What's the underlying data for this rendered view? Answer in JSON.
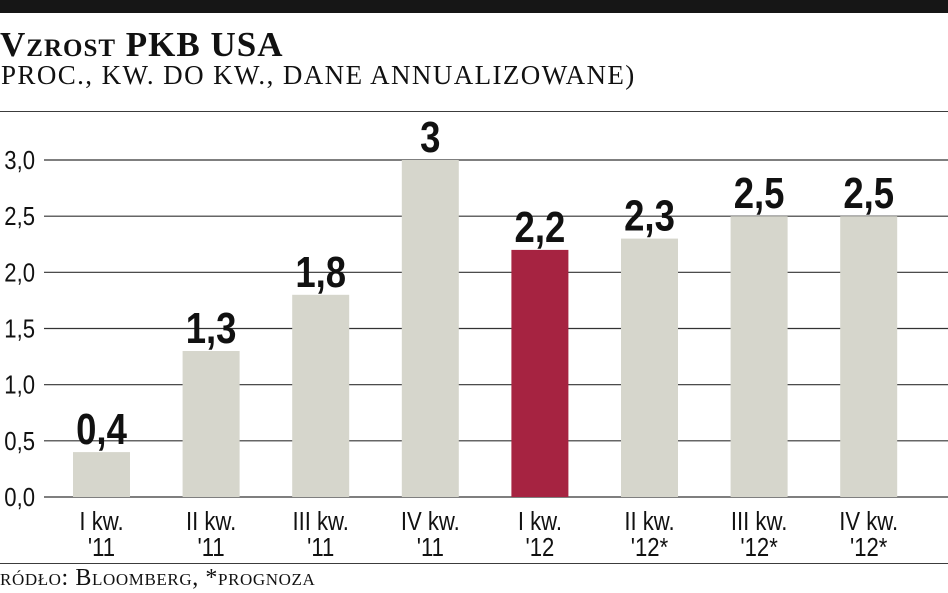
{
  "colors": {
    "top_bar": "#161616",
    "text": "#111111",
    "grid": "#333333",
    "rule": "#3c3c3c",
    "bar": "#d6d6cc",
    "highlight": "#a62341"
  },
  "chart_data": {
    "type": "bar",
    "title": "Vzrost PKB USA",
    "subtitle": "PROC., KW. DO KW., DANE ANNUALIZOWANE)",
    "source": "ródło: Bloomberg, *prognoza",
    "categories": [
      [
        "I kw.",
        "'11"
      ],
      [
        "II kw.",
        "'11"
      ],
      [
        "III kw.",
        "'11"
      ],
      [
        "IV kw.",
        "'11"
      ],
      [
        "I kw.",
        "'12"
      ],
      [
        "II kw.",
        "'12*"
      ],
      [
        "III kw.",
        "'12*"
      ],
      [
        "IV kw.",
        "'12*"
      ]
    ],
    "values": [
      0.4,
      1.3,
      1.8,
      3,
      2.2,
      2.3,
      2.5,
      2.5
    ],
    "value_labels": [
      "0,4",
      "1,3",
      "1,8",
      "3",
      "2,2",
      "2,3",
      "2,5",
      "2,5"
    ],
    "highlight_index": 4,
    "ylim": [
      0,
      3
    ],
    "yticks": [
      0,
      0.5,
      1,
      1.5,
      2,
      2.5,
      3
    ],
    "ytick_labels": [
      "0,0",
      "0,5",
      "1,0",
      "1,5",
      "2,0",
      "2,5",
      "3,0"
    ],
    "grid": true
  }
}
